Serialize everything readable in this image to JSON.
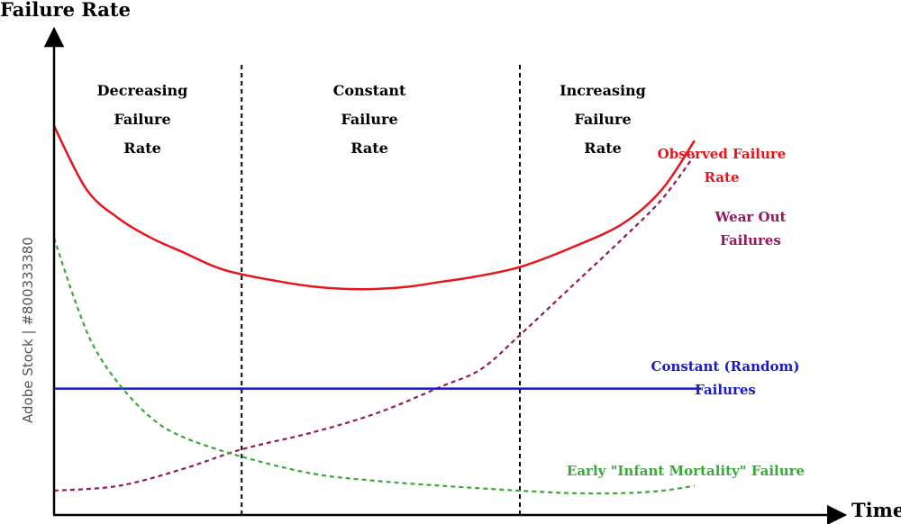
{
  "chart_data": {
    "type": "line",
    "title": "",
    "xlabel": "Time",
    "ylabel": "Failure Rate",
    "regions": [
      {
        "label": "Decreasing\nFailure\nRate",
        "x_start": 0,
        "x_end": 0.29
      },
      {
        "label": "Constant\nFailure\nRate",
        "x_start": 0.29,
        "x_end": 0.72
      },
      {
        "label": "Increasing\nFailure\nRate",
        "x_start": 0.72,
        "x_end": 1.0
      }
    ],
    "series": [
      {
        "name": "Observed Failure\nRate",
        "color": "#e8141b",
        "style": "solid",
        "points": [
          [
            0,
            0.8
          ],
          [
            0.05,
            0.67
          ],
          [
            0.1,
            0.61
          ],
          [
            0.15,
            0.57
          ],
          [
            0.2,
            0.54
          ],
          [
            0.25,
            0.51
          ],
          [
            0.29,
            0.495
          ],
          [
            0.35,
            0.48
          ],
          [
            0.4,
            0.47
          ],
          [
            0.45,
            0.465
          ],
          [
            0.5,
            0.465
          ],
          [
            0.55,
            0.47
          ],
          [
            0.6,
            0.48
          ],
          [
            0.65,
            0.49
          ],
          [
            0.72,
            0.51
          ],
          [
            0.8,
            0.55
          ],
          [
            0.88,
            0.6
          ],
          [
            0.94,
            0.67
          ],
          [
            0.99,
            0.77
          ]
        ]
      },
      {
        "name": "Wear Out\nFailures",
        "color": "#93195d",
        "style": "dashed",
        "points": [
          [
            0,
            0.05
          ],
          [
            0.1,
            0.06
          ],
          [
            0.2,
            0.095
          ],
          [
            0.29,
            0.135
          ],
          [
            0.4,
            0.17
          ],
          [
            0.5,
            0.21
          ],
          [
            0.6,
            0.265
          ],
          [
            0.66,
            0.3
          ],
          [
            0.72,
            0.37
          ],
          [
            0.8,
            0.47
          ],
          [
            0.88,
            0.57
          ],
          [
            0.94,
            0.65
          ],
          [
            0.99,
            0.74
          ]
        ]
      },
      {
        "name": "Constant (Random)\nFailures",
        "color": "#1a1acc",
        "style": "solid",
        "points": [
          [
            0,
            0.26
          ],
          [
            1.0,
            0.26
          ]
        ]
      },
      {
        "name": "Early \"Infant Mortality\" Failure",
        "color": "#3aa83a",
        "style": "dashed",
        "points": [
          [
            0,
            0.57
          ],
          [
            0.03,
            0.45
          ],
          [
            0.06,
            0.35
          ],
          [
            0.1,
            0.27
          ],
          [
            0.15,
            0.2
          ],
          [
            0.2,
            0.16
          ],
          [
            0.29,
            0.12
          ],
          [
            0.4,
            0.085
          ],
          [
            0.5,
            0.07
          ],
          [
            0.6,
            0.06
          ],
          [
            0.72,
            0.05
          ],
          [
            0.8,
            0.045
          ],
          [
            0.88,
            0.045
          ],
          [
            0.94,
            0.05
          ],
          [
            0.99,
            0.06
          ]
        ]
      }
    ],
    "legend": "inline labels next to curves",
    "grid": false
  },
  "watermark": "Adobe Stock | #800333380"
}
